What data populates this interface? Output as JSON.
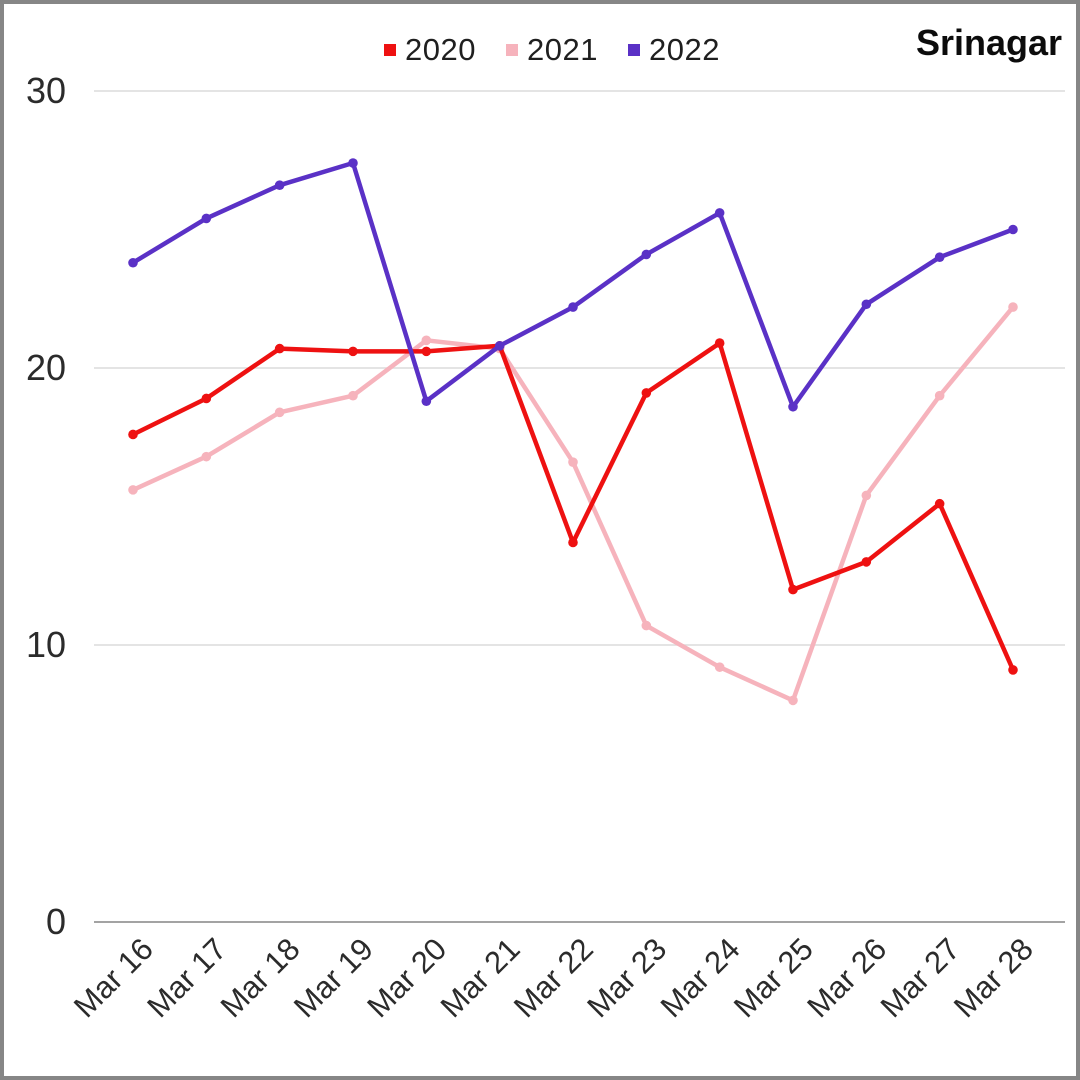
{
  "title": "Srinagar",
  "legend": {
    "position": "top-center",
    "items": [
      "2020",
      "2021",
      "2022"
    ]
  },
  "colors": {
    "series_2020": "#ee1111",
    "series_2021": "#f6b3bc",
    "series_2022": "#5a31c6",
    "gridline": "#dcdcdc",
    "axis_line": "#a3a3a3",
    "tick_text": "#2b2b2b",
    "title_text": "#0c0c0c",
    "frame_border": "#868686"
  },
  "chart_data": {
    "type": "line",
    "title": "Srinagar",
    "x": [
      "Mar 16",
      "Mar 17",
      "Mar 18",
      "Mar 19",
      "Mar 20",
      "Mar 21",
      "Mar 22",
      "Mar 23",
      "Mar 24",
      "Mar 25",
      "Mar 26",
      "Mar 27",
      "Mar 28"
    ],
    "series": [
      {
        "name": "2020",
        "color": "#ee1111",
        "values": [
          17.6,
          18.9,
          20.7,
          20.6,
          20.6,
          20.8,
          13.7,
          19.1,
          20.9,
          12.0,
          13.0,
          15.1,
          9.1
        ]
      },
      {
        "name": "2021",
        "color": "#f6b3bc",
        "values": [
          15.6,
          16.8,
          18.4,
          19.0,
          21.0,
          20.7,
          16.6,
          10.7,
          9.2,
          8.0,
          15.4,
          19.0,
          22.2
        ]
      },
      {
        "name": "2022",
        "color": "#5a31c6",
        "values": [
          23.8,
          25.4,
          26.6,
          27.4,
          18.8,
          20.8,
          22.2,
          24.1,
          25.6,
          18.6,
          22.3,
          24.0,
          25.0
        ]
      }
    ],
    "xlabel": "",
    "ylabel": "",
    "ylim": [
      0,
      30
    ],
    "yticks": [
      0,
      10,
      20,
      30
    ],
    "grid": "horizontal",
    "legend_position": "top-center",
    "x_tick_rotation_deg": -45,
    "draw_order": [
      "2021",
      "2020",
      "2022"
    ]
  }
}
